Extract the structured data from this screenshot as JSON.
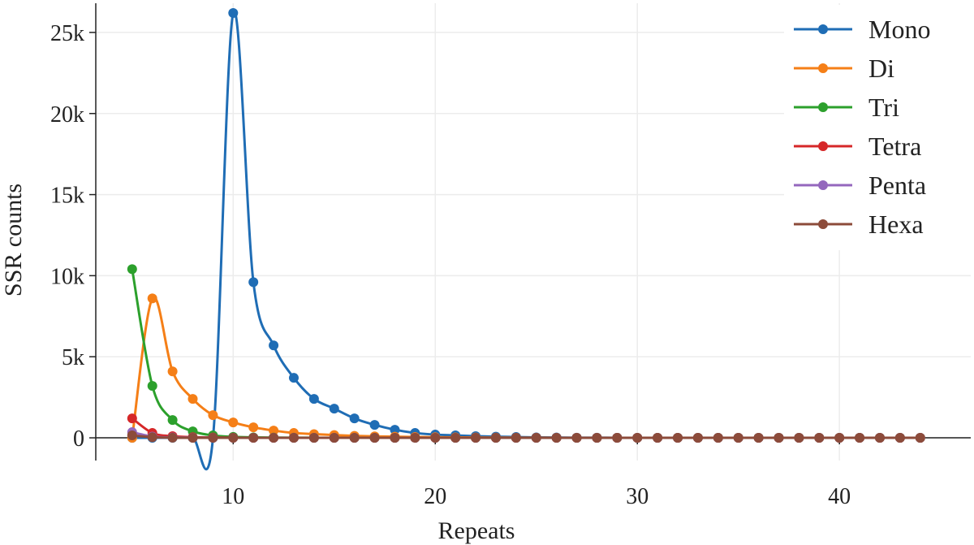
{
  "chart_data": {
    "type": "line",
    "xlabel": "Repeats",
    "ylabel": "SSR counts",
    "xlim": [
      3.2,
      46.5
    ],
    "ylim": [
      -1400,
      26800
    ],
    "x_ticks": [
      10,
      20,
      30,
      40
    ],
    "x_tick_labels": [
      "10",
      "20",
      "30",
      "40"
    ],
    "y_ticks": [
      0,
      5000,
      10000,
      15000,
      20000,
      25000
    ],
    "y_tick_labels": [
      "0",
      "5k",
      "10k",
      "15k",
      "20k",
      "25k"
    ],
    "grid": true,
    "legend_position": "top-right",
    "series": [
      {
        "name": "Mono",
        "color": "#1f6db5",
        "x": [
          5,
          6,
          7,
          8,
          9,
          10,
          11,
          12,
          13,
          14,
          15,
          16,
          17,
          18,
          19,
          20,
          21,
          22,
          23,
          24,
          25,
          26,
          27,
          28,
          29,
          30,
          31,
          32,
          33,
          34,
          35,
          36,
          37,
          38,
          39,
          40,
          41,
          42,
          43,
          44
        ],
        "values": [
          0,
          0,
          0,
          0,
          0,
          26200,
          9600,
          5700,
          3700,
          2400,
          1800,
          1200,
          800,
          500,
          300,
          200,
          150,
          100,
          70,
          50,
          30,
          20,
          10,
          10,
          5,
          5,
          5,
          5,
          5,
          5,
          5,
          5,
          5,
          5,
          5,
          5,
          5,
          5,
          5,
          5
        ]
      },
      {
        "name": "Di",
        "color": "#f57f17",
        "x": [
          5,
          6,
          7,
          8,
          9,
          10,
          11,
          12,
          13,
          14,
          15,
          16,
          17,
          18,
          19,
          20,
          21,
          22,
          23,
          24,
          25,
          26,
          27,
          28,
          29,
          30,
          31,
          32,
          33,
          34,
          35,
          36,
          37,
          38,
          39,
          40,
          41,
          42,
          43,
          44
        ],
        "values": [
          0,
          8600,
          4100,
          2400,
          1400,
          950,
          650,
          450,
          300,
          230,
          170,
          120,
          90,
          70,
          50,
          40,
          30,
          20,
          15,
          10,
          10,
          5,
          5,
          5,
          5,
          5,
          5,
          5,
          5,
          5,
          5,
          5,
          5,
          5,
          5,
          5,
          5,
          5,
          5,
          5
        ]
      },
      {
        "name": "Tri",
        "color": "#2ca02c",
        "x": [
          5,
          6,
          7,
          8,
          9,
          10,
          11,
          12,
          13,
          14,
          15,
          16,
          17,
          18,
          19,
          20,
          21,
          22,
          23,
          24,
          25,
          26,
          27,
          28,
          29,
          30,
          31,
          32,
          33,
          34,
          35,
          36,
          37,
          38,
          39,
          40,
          41,
          42,
          43,
          44
        ],
        "values": [
          10400,
          3200,
          1100,
          400,
          150,
          60,
          30,
          15,
          10,
          5,
          5,
          5,
          5,
          5,
          5,
          5,
          5,
          5,
          5,
          5,
          5,
          5,
          5,
          5,
          5,
          5,
          5,
          5,
          5,
          5,
          5,
          5,
          5,
          5,
          5,
          5,
          5,
          5,
          5,
          5
        ]
      },
      {
        "name": "Tetra",
        "color": "#d62728",
        "x": [
          5,
          6,
          7,
          8,
          9,
          10,
          11,
          12,
          13,
          14,
          15,
          16,
          17,
          18,
          19,
          20,
          21,
          22,
          23,
          24,
          25,
          26,
          27,
          28,
          29,
          30,
          31,
          32,
          33,
          34,
          35,
          36,
          37,
          38,
          39,
          40,
          41,
          42,
          43,
          44
        ],
        "values": [
          1200,
          300,
          100,
          40,
          20,
          10,
          5,
          5,
          5,
          5,
          5,
          5,
          5,
          5,
          5,
          5,
          5,
          5,
          5,
          5,
          5,
          5,
          5,
          5,
          5,
          5,
          5,
          5,
          5,
          5,
          5,
          5,
          5,
          5,
          5,
          5,
          5,
          5,
          5,
          5
        ]
      },
      {
        "name": "Penta",
        "color": "#9467bd",
        "x": [
          5,
          6,
          7,
          8,
          9,
          10,
          11,
          12,
          13,
          14,
          15,
          16,
          17,
          18,
          19,
          20,
          21,
          22,
          23,
          24,
          25,
          26,
          27,
          28,
          29,
          30,
          31,
          32,
          33,
          34,
          35,
          36,
          37,
          38,
          39,
          40,
          41,
          42,
          43,
          44
        ],
        "values": [
          350,
          80,
          25,
          10,
          5,
          5,
          5,
          5,
          5,
          5,
          5,
          5,
          5,
          5,
          5,
          5,
          5,
          5,
          5,
          5,
          5,
          5,
          5,
          5,
          5,
          5,
          5,
          5,
          5,
          5,
          5,
          5,
          5,
          5,
          5,
          5,
          5,
          5,
          5,
          5
        ]
      },
      {
        "name": "Hexa",
        "color": "#8c4b3a",
        "x": [
          5,
          6,
          7,
          8,
          9,
          10,
          11,
          12,
          13,
          14,
          15,
          16,
          17,
          18,
          19,
          20,
          21,
          22,
          23,
          24,
          25,
          26,
          27,
          28,
          29,
          30,
          31,
          32,
          33,
          34,
          35,
          36,
          37,
          38,
          39,
          40,
          41,
          42,
          43,
          44
        ],
        "values": [
          150,
          40,
          10,
          5,
          5,
          5,
          5,
          5,
          5,
          5,
          5,
          5,
          5,
          5,
          5,
          5,
          5,
          5,
          5,
          5,
          5,
          5,
          5,
          5,
          5,
          5,
          5,
          5,
          5,
          5,
          5,
          5,
          5,
          5,
          5,
          5,
          5,
          5,
          5,
          5
        ]
      }
    ]
  }
}
